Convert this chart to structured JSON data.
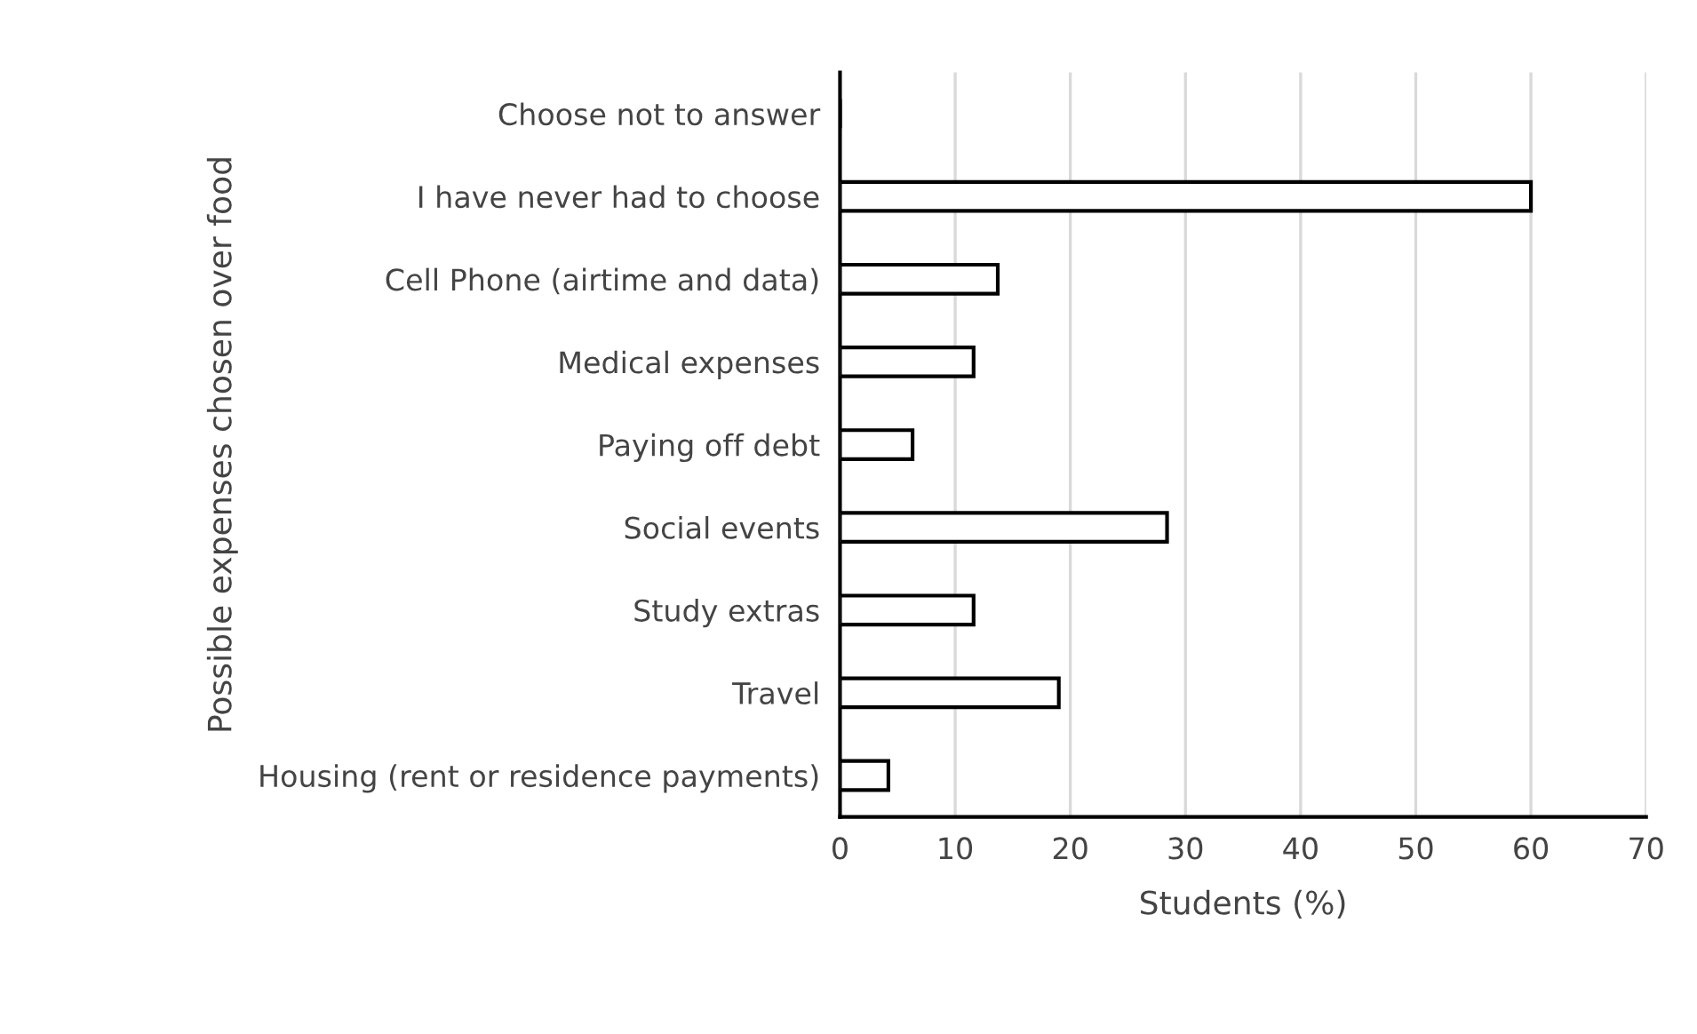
{
  "chart_data": {
    "type": "bar",
    "orientation": "horizontal",
    "xlabel": "Students (%)",
    "ylabel": "Possible expenses chosen over food",
    "categories": [
      "Choose not to answer",
      "I have never had to choose",
      "Cell Phone (airtime and data)",
      "Medical expenses",
      "Paying off debt",
      "Social events",
      "Study extras",
      "Travel",
      "Housing (rent or residence payments)"
    ],
    "values": [
      0,
      60.0,
      13.7,
      11.6,
      6.3,
      28.4,
      11.6,
      19.0,
      4.2
    ],
    "color": "#ffffff",
    "xlim": [
      0,
      70
    ],
    "xticks": [
      0,
      10,
      20,
      30,
      40,
      50,
      60,
      70
    ],
    "grid": "x"
  }
}
